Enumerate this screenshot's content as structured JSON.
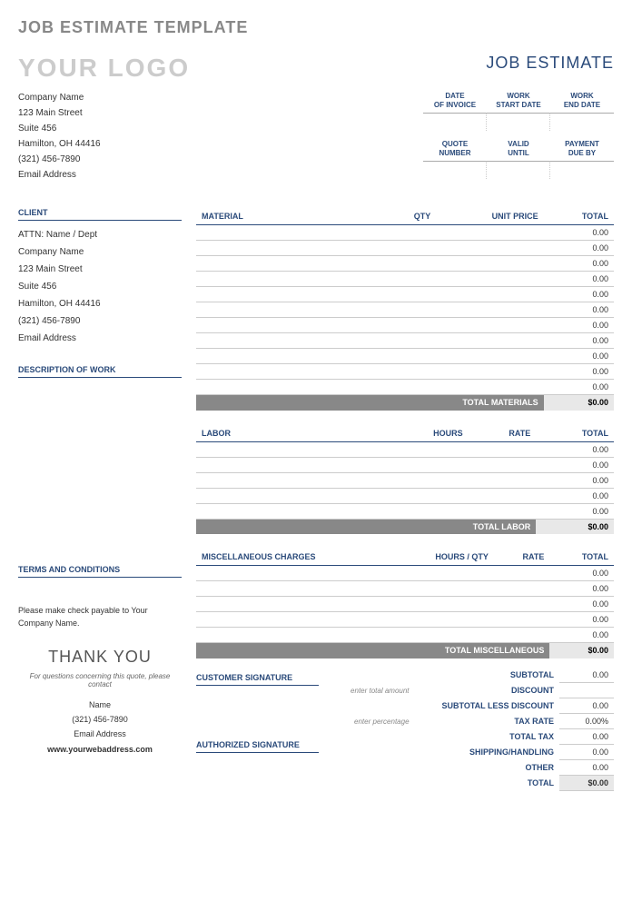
{
  "page_title": "JOB ESTIMATE TEMPLATE",
  "logo_text": "YOUR LOGO",
  "doc_title": "JOB ESTIMATE",
  "company": {
    "name": "Company Name",
    "street": "123 Main Street",
    "suite": "Suite 456",
    "city": "Hamilton, OH  44416",
    "phone": "(321) 456-7890",
    "email": "Email Address"
  },
  "date_headers_top": [
    {
      "l1": "DATE",
      "l2": "OF INVOICE"
    },
    {
      "l1": "WORK",
      "l2": "START DATE"
    },
    {
      "l1": "WORK",
      "l2": "END DATE"
    }
  ],
  "date_headers_bottom": [
    {
      "l1": "QUOTE",
      "l2": "NUMBER"
    },
    {
      "l1": "VALID",
      "l2": "UNTIL"
    },
    {
      "l1": "PAYMENT",
      "l2": "DUE BY"
    }
  ],
  "client_label": "CLIENT",
  "client": {
    "attn": "ATTN: Name / Dept",
    "company": "Company Name",
    "street": "123 Main Street",
    "suite": "Suite 456",
    "city": "Hamilton, OH  44416",
    "phone": "(321) 456-7890",
    "email": "Email Address"
  },
  "desc_label": "DESCRIPTION OF WORK",
  "terms_label": "TERMS AND CONDITIONS",
  "terms_text": "Please make check payable to Your Company Name.",
  "materials": {
    "headers": [
      "MATERIAL",
      "QTY",
      "UNIT PRICE",
      "TOTAL"
    ],
    "rows": [
      "0.00",
      "0.00",
      "0.00",
      "0.00",
      "0.00",
      "0.00",
      "0.00",
      "0.00",
      "0.00",
      "0.00",
      "0.00"
    ],
    "total_label": "TOTAL MATERIALS",
    "total_value": "$0.00"
  },
  "labor": {
    "headers": [
      "LABOR",
      "HOURS",
      "RATE",
      "TOTAL"
    ],
    "rows": [
      "0.00",
      "0.00",
      "0.00",
      "0.00",
      "0.00"
    ],
    "total_label": "TOTAL LABOR",
    "total_value": "$0.00"
  },
  "misc": {
    "headers": [
      "MISCELLANEOUS CHARGES",
      "HOURS / QTY",
      "RATE",
      "TOTAL"
    ],
    "rows": [
      "0.00",
      "0.00",
      "0.00",
      "0.00",
      "0.00"
    ],
    "total_label": "TOTAL MISCELLANEOUS",
    "total_value": "$0.00"
  },
  "summary": {
    "subtotal": {
      "label": "SUBTOTAL",
      "value": "0.00"
    },
    "discount": {
      "hint": "enter total amount",
      "label": "DISCOUNT",
      "value": ""
    },
    "less_discount": {
      "label": "SUBTOTAL LESS DISCOUNT",
      "value": "0.00"
    },
    "tax_rate": {
      "hint": "enter percentage",
      "label": "TAX RATE",
      "value": "0.00%"
    },
    "total_tax": {
      "label": "TOTAL TAX",
      "value": "0.00"
    },
    "shipping": {
      "label": "SHIPPING/HANDLING",
      "value": "0.00"
    },
    "other": {
      "label": "OTHER",
      "value": "0.00"
    },
    "total": {
      "label": "TOTAL",
      "value": "$0.00"
    }
  },
  "thank_you": {
    "title": "THANK YOU",
    "sub": "For questions concerning this quote, please contact",
    "name": "Name",
    "phone": "(321) 456-7890",
    "email": "Email Address",
    "web": "www.yourwebaddress.com"
  },
  "sig_customer": "CUSTOMER SIGNATURE",
  "sig_authorized": "AUTHORIZED SIGNATURE"
}
